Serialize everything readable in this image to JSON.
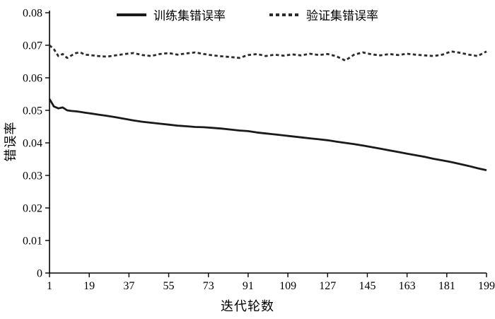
{
  "chart_data": {
    "type": "line",
    "title": "",
    "xlabel": "迭代轮数",
    "ylabel": "错误率",
    "xlim": [
      1,
      199
    ],
    "ylim": [
      0,
      0.08
    ],
    "x_ticks": [
      1,
      19,
      37,
      55,
      73,
      91,
      109,
      127,
      145,
      163,
      181,
      199
    ],
    "y_ticks": [
      0,
      0.01,
      0.02,
      0.03,
      0.04,
      0.05,
      0.06,
      0.07,
      0.08
    ],
    "y_tick_labels": [
      "0",
      "0.01",
      "0.02",
      "0.03",
      "0.04",
      "0.05",
      "0.06",
      "0.07",
      "0.08"
    ],
    "grid": false,
    "legend_position": "top",
    "x": [
      1,
      3,
      5,
      7,
      9,
      11,
      13,
      15,
      17,
      19,
      23,
      27,
      31,
      35,
      39,
      43,
      47,
      51,
      55,
      59,
      63,
      67,
      71,
      75,
      79,
      83,
      87,
      91,
      95,
      99,
      103,
      107,
      111,
      115,
      119,
      123,
      127,
      131,
      135,
      139,
      143,
      147,
      151,
      155,
      159,
      163,
      167,
      171,
      175,
      179,
      183,
      187,
      191,
      195,
      199
    ],
    "series": [
      {
        "name": "训练集错误率",
        "style": "solid",
        "color": "#1a1a1a",
        "values": [
          0.0535,
          0.0512,
          0.0506,
          0.0509,
          0.05,
          0.0498,
          0.0497,
          0.0495,
          0.0493,
          0.0491,
          0.0487,
          0.0483,
          0.0479,
          0.0474,
          0.0469,
          0.0465,
          0.0462,
          0.0459,
          0.0456,
          0.0453,
          0.0451,
          0.0449,
          0.0448,
          0.0446,
          0.0444,
          0.0441,
          0.0438,
          0.0436,
          0.0432,
          0.0429,
          0.0426,
          0.0423,
          0.042,
          0.0417,
          0.0414,
          0.0411,
          0.0408,
          0.0404,
          0.04,
          0.0396,
          0.0392,
          0.0387,
          0.0382,
          0.0377,
          0.0372,
          0.0367,
          0.0362,
          0.0357,
          0.0351,
          0.0346,
          0.0341,
          0.0335,
          0.0329,
          0.0322,
          0.0316
        ]
      },
      {
        "name": "验证集错误率",
        "style": "dashed",
        "color": "#2b2b2b",
        "values": [
          0.07,
          0.0688,
          0.0667,
          0.0673,
          0.0661,
          0.0669,
          0.0676,
          0.0678,
          0.0671,
          0.067,
          0.0667,
          0.0665,
          0.0669,
          0.0673,
          0.0676,
          0.067,
          0.0667,
          0.0673,
          0.0676,
          0.0671,
          0.0675,
          0.0678,
          0.0673,
          0.0669,
          0.0666,
          0.0664,
          0.0661,
          0.067,
          0.0673,
          0.0667,
          0.0671,
          0.0668,
          0.0672,
          0.0669,
          0.0674,
          0.067,
          0.0673,
          0.0666,
          0.0653,
          0.0671,
          0.0678,
          0.0672,
          0.0669,
          0.0673,
          0.067,
          0.0674,
          0.0671,
          0.0669,
          0.0667,
          0.0671,
          0.0681,
          0.0677,
          0.0671,
          0.0667,
          0.0681
        ]
      }
    ],
    "axis_color": "#000000",
    "tick_label_color": "#000000"
  }
}
